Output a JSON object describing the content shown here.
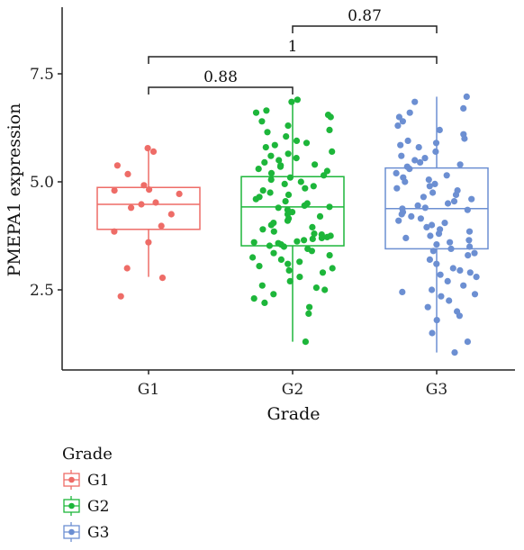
{
  "chart_data": {
    "type": "box",
    "title": "",
    "xlabel": "Grade",
    "ylabel": "PMEPA1 expression",
    "ylim": [
      0.8,
      9.0
    ],
    "yticks": [
      2.5,
      5.0,
      7.5
    ],
    "ytick_labels": [
      "2.5",
      "5.0",
      "7.5"
    ],
    "categories": [
      "G1",
      "G2",
      "G3"
    ],
    "grid": false,
    "legend": {
      "title": "Grade",
      "placement": "bottom-left",
      "entries": [
        "G1",
        "G2",
        "G3"
      ]
    },
    "series": [
      {
        "name": "G1",
        "color": "#EE6C67",
        "box": {
          "min": 2.8,
          "q1": 3.9,
          "median": 4.48,
          "q3": 4.87,
          "max": 5.8
        },
        "points": [
          5.78,
          5.7,
          5.38,
          5.18,
          4.92,
          4.82,
          4.8,
          4.72,
          4.52,
          4.48,
          4.4,
          4.25,
          3.98,
          3.85,
          3.6,
          3.0,
          2.78,
          2.35
        ]
      },
      {
        "name": "G2",
        "color": "#1DB63A",
        "box": {
          "min": 1.3,
          "q1": 3.52,
          "median": 4.42,
          "q3": 5.12,
          "max": 6.9
        },
        "points": [
          6.9,
          6.85,
          6.65,
          6.6,
          6.55,
          6.5,
          6.4,
          6.3,
          6.2,
          6.15,
          6.05,
          5.95,
          5.9,
          5.85,
          5.8,
          5.7,
          5.65,
          5.6,
          5.55,
          5.5,
          5.45,
          5.4,
          5.38,
          5.35,
          5.3,
          5.25,
          5.2,
          5.15,
          5.1,
          5.05,
          5.0,
          4.95,
          4.9,
          4.85,
          4.8,
          4.75,
          4.7,
          4.65,
          4.6,
          4.55,
          4.5,
          4.45,
          4.42,
          4.4,
          4.35,
          4.3,
          4.25,
          4.2,
          4.15,
          4.1,
          4.05,
          4.0,
          3.95,
          3.9,
          3.85,
          3.8,
          3.78,
          3.75,
          3.72,
          3.7,
          3.68,
          3.65,
          3.62,
          3.6,
          3.58,
          3.55,
          3.52,
          3.5,
          3.45,
          3.4,
          3.35,
          3.3,
          3.25,
          3.2,
          3.15,
          3.1,
          3.05,
          3.0,
          2.95,
          2.9,
          2.8,
          2.7,
          2.6,
          2.55,
          2.5,
          2.4,
          2.3,
          2.2,
          2.1,
          1.95,
          1.3
        ]
      },
      {
        "name": "G3",
        "color": "#6C8FD2",
        "box": {
          "min": 1.05,
          "q1": 3.45,
          "median": 4.38,
          "q3": 5.32,
          "max": 6.97
        },
        "points": [
          6.97,
          6.85,
          6.7,
          6.6,
          6.5,
          6.4,
          6.3,
          6.2,
          6.1,
          6.0,
          5.95,
          5.9,
          5.85,
          5.8,
          5.7,
          5.6,
          5.55,
          5.5,
          5.45,
          5.4,
          5.35,
          5.3,
          5.2,
          5.15,
          5.1,
          5.05,
          5.0,
          4.95,
          4.9,
          4.85,
          4.8,
          4.75,
          4.7,
          4.65,
          4.6,
          4.55,
          4.5,
          4.45,
          4.4,
          4.38,
          4.35,
          4.3,
          4.25,
          4.2,
          4.15,
          4.1,
          4.05,
          4.0,
          3.95,
          3.9,
          3.85,
          3.8,
          3.75,
          3.7,
          3.65,
          3.6,
          3.55,
          3.5,
          3.45,
          3.4,
          3.35,
          3.3,
          3.2,
          3.1,
          3.0,
          2.95,
          2.9,
          2.85,
          2.8,
          2.7,
          2.6,
          2.5,
          2.45,
          2.4,
          2.35,
          2.25,
          2.1,
          2.0,
          1.9,
          1.8,
          1.5,
          1.3,
          1.05
        ]
      }
    ],
    "comparisons": [
      {
        "from": "G1",
        "to": "G2",
        "label": "0.88",
        "y": 8.2
      },
      {
        "from": "G1",
        "to": "G3",
        "label": "1",
        "y": 8.8
      },
      {
        "from": "G2",
        "to": "G3",
        "label": "0.87",
        "y": 9.5
      }
    ]
  }
}
